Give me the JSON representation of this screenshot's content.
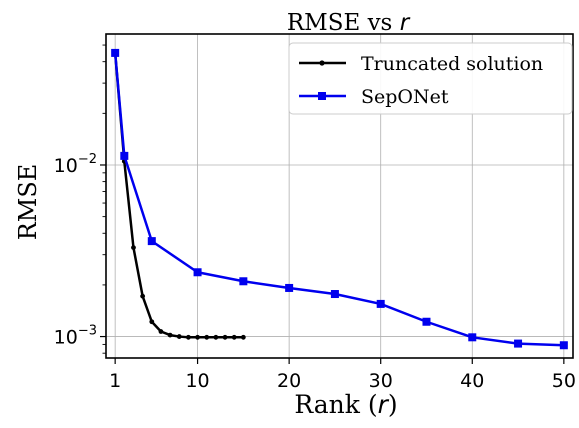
{
  "chart_data": {
    "type": "line",
    "title_text": "RMSE vs ",
    "title_var": "r",
    "xlabel_text": "Rank (",
    "xlabel_var": "r",
    "xlabel_close": ")",
    "ylabel": "RMSE",
    "yscale": "log",
    "xlim": [
      0,
      51
    ],
    "ylim": [
      0.00075,
      0.058
    ],
    "grid": true,
    "legend_position": "top-right",
    "x_ticks": [
      1,
      10,
      20,
      30,
      40,
      50
    ],
    "y_ticks": [
      {
        "value": 0.01,
        "base": "10",
        "exp": "−2"
      },
      {
        "value": 0.001,
        "base": "10",
        "exp": "−3"
      }
    ],
    "series": [
      {
        "name": "Truncated solution",
        "color": "#000000",
        "marker": "dot",
        "x": [
          1,
          2,
          3,
          4,
          5,
          6,
          7,
          8,
          9,
          10,
          11,
          12,
          13,
          14,
          15
        ],
        "y": [
          0.045,
          0.0105,
          0.0033,
          0.00172,
          0.00122,
          0.00107,
          0.00102,
          0.001,
          0.00099,
          0.00099,
          0.00099,
          0.00099,
          0.00099,
          0.00099,
          0.00099
        ]
      },
      {
        "name": "SepONet",
        "color": "#0000ee",
        "marker": "square",
        "x": [
          1,
          2,
          5,
          10,
          15,
          20,
          25,
          30,
          35,
          40,
          45,
          50
        ],
        "y": [
          0.045,
          0.0113,
          0.0036,
          0.00237,
          0.0021,
          0.00192,
          0.00177,
          0.00155,
          0.00122,
          0.00099,
          0.00091,
          0.00089
        ]
      }
    ]
  }
}
